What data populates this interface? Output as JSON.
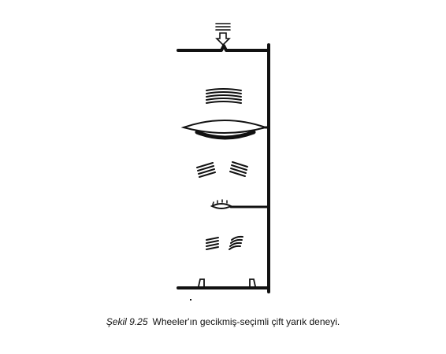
{
  "figure": {
    "caption_label": "Şekil 9.25",
    "caption_text": "Wheeler'ın gecikmiş-seçimli çift yarık deneyi."
  },
  "colors": {
    "ink": "#111111",
    "background": "#ffffff"
  },
  "icons": [
    "incoming-light-arrow-icon"
  ]
}
